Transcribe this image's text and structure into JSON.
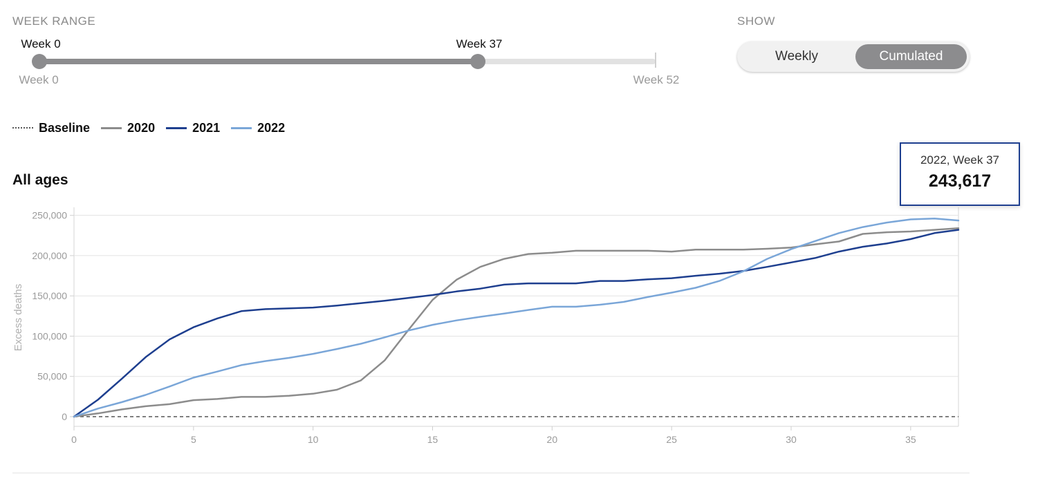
{
  "controls": {
    "week_range_label": "WEEK RANGE",
    "show_label": "SHOW",
    "slider": {
      "min_label": "Week 0",
      "max_label": "Week 52",
      "start_label": "Week 0",
      "end_label": "Week 37",
      "min": 0,
      "max": 52,
      "start": 0,
      "end": 37
    },
    "toggle": {
      "options": [
        "Weekly",
        "Cumulated"
      ],
      "selected": "Cumulated"
    }
  },
  "tooltip": {
    "label": "2022, Week 37",
    "value": "243,617"
  },
  "colors": {
    "baseline": "#555555",
    "2020": "#8c8c8c",
    "2021": "#1e3f8f",
    "2022": "#7aa6d8",
    "selected": "#8c8c8e"
  },
  "chart_data": {
    "type": "line",
    "title": "All ages",
    "xlabel": "",
    "ylabel": "Excess deaths",
    "xlim": [
      0,
      37
    ],
    "ylim": [
      0,
      260000
    ],
    "x_ticks": [
      0,
      5,
      10,
      15,
      20,
      25,
      30,
      35
    ],
    "y_ticks": [
      0,
      50000,
      100000,
      150000,
      200000,
      250000
    ],
    "y_tick_labels": [
      "0",
      "50,000",
      "100,000",
      "150,000",
      "200,000",
      "250,000"
    ],
    "grid": true,
    "legend_position": "top-left",
    "baseline": {
      "name": "Baseline",
      "value": 0
    },
    "series": [
      {
        "name": "2020",
        "x": [
          0,
          1,
          2,
          3,
          4,
          5,
          6,
          7,
          8,
          9,
          10,
          11,
          12,
          13,
          14,
          15,
          16,
          17,
          18,
          19,
          20,
          21,
          22,
          23,
          24,
          25,
          26,
          27,
          28,
          29,
          30,
          31,
          32,
          33,
          34,
          35,
          36,
          37
        ],
        "values": [
          0,
          4000,
          9000,
          13000,
          15500,
          20500,
          22000,
          24500,
          24500,
          26000,
          28500,
          33500,
          45000,
          70000,
          108000,
          145000,
          170000,
          186000,
          196000,
          202000,
          203500,
          206000,
          206000,
          206000,
          206000,
          205000,
          207500,
          207500,
          207500,
          208500,
          210000,
          214000,
          217500,
          227000,
          229000,
          230000,
          232000,
          234000
        ]
      },
      {
        "name": "2021",
        "x": [
          0,
          1,
          2,
          3,
          4,
          5,
          6,
          7,
          8,
          9,
          10,
          11,
          12,
          13,
          14,
          15,
          16,
          17,
          18,
          19,
          20,
          21,
          22,
          23,
          24,
          25,
          26,
          27,
          28,
          29,
          30,
          31,
          32,
          33,
          34,
          35,
          36,
          37
        ],
        "values": [
          0,
          21000,
          47000,
          74000,
          96000,
          111000,
          122000,
          131000,
          133500,
          134500,
          135500,
          138000,
          141000,
          144000,
          147500,
          151000,
          155500,
          159000,
          164000,
          165500,
          165500,
          165500,
          168500,
          168500,
          170500,
          172000,
          175000,
          177500,
          181000,
          186000,
          191500,
          197000,
          205000,
          211000,
          215000,
          220500,
          228000,
          232000
        ]
      },
      {
        "name": "2022",
        "x": [
          0,
          1,
          2,
          3,
          4,
          5,
          6,
          7,
          8,
          9,
          10,
          11,
          12,
          13,
          14,
          15,
          16,
          17,
          18,
          19,
          20,
          21,
          22,
          23,
          24,
          25,
          26,
          27,
          28,
          29,
          30,
          31,
          32,
          33,
          34,
          35,
          36,
          37
        ],
        "values": [
          0,
          10000,
          18000,
          27000,
          37500,
          48500,
          56000,
          64000,
          69000,
          73000,
          78000,
          84000,
          90500,
          98500,
          107000,
          114000,
          119500,
          124000,
          128000,
          132500,
          136500,
          136500,
          139000,
          142500,
          148500,
          154000,
          160000,
          168500,
          180500,
          196000,
          208000,
          218000,
          228000,
          235500,
          241000,
          245000,
          246000,
          243617
        ]
      }
    ]
  }
}
